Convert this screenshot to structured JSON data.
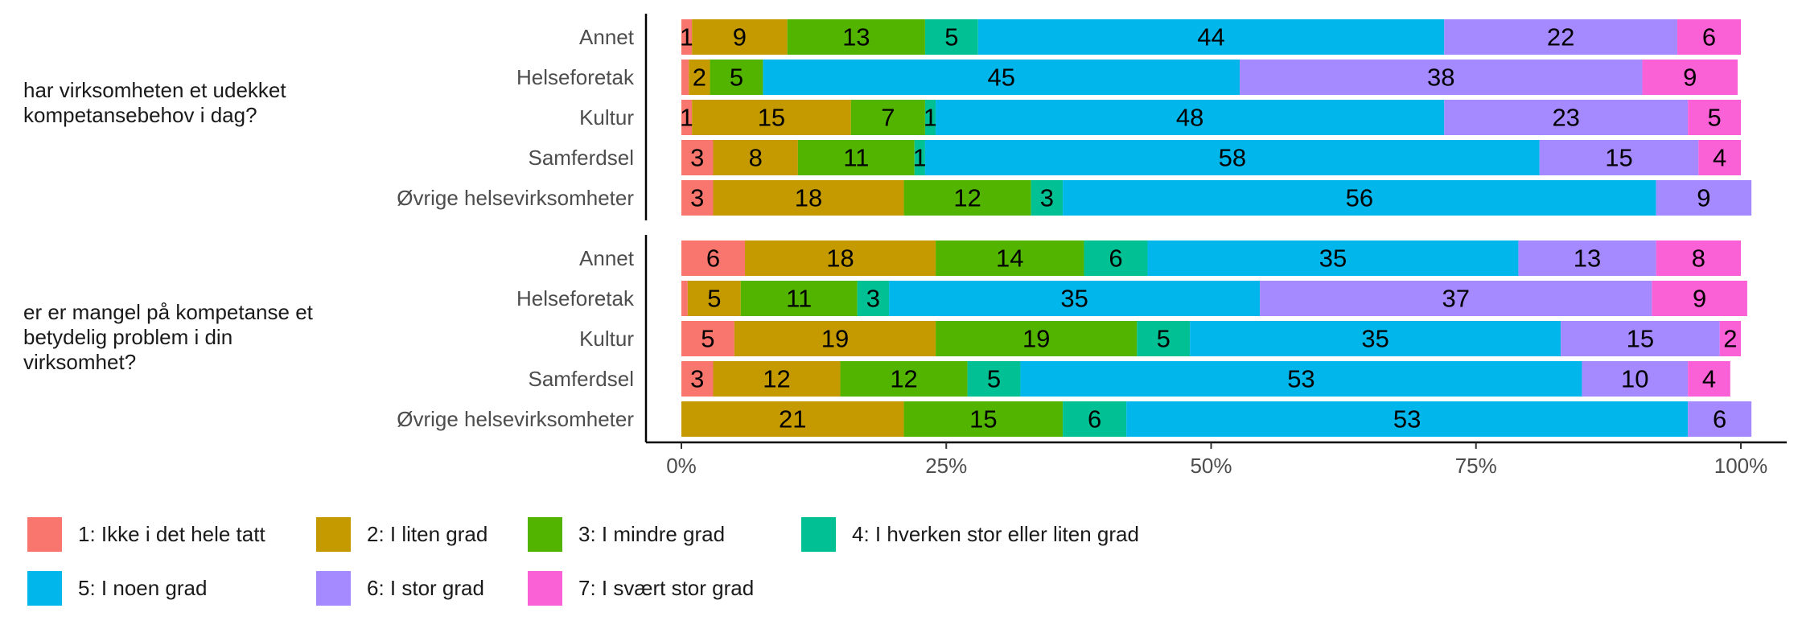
{
  "chart_data": {
    "type": "bar",
    "orientation": "horizontal",
    "stacked": true,
    "xlim": [
      0,
      100
    ],
    "xticks": [
      {
        "value": 0,
        "label": "0%"
      },
      {
        "value": 25,
        "label": "25%"
      },
      {
        "value": 50,
        "label": "50%"
      },
      {
        "value": 75,
        "label": "75%"
      },
      {
        "value": 100,
        "label": "100%"
      }
    ],
    "series": [
      {
        "name": "1: Ikke i det hele tatt",
        "color": "#f8766d"
      },
      {
        "name": "2: I liten grad",
        "color": "#c49a00"
      },
      {
        "name": "3: I mindre grad",
        "color": "#53b400"
      },
      {
        "name": "4: I hverken stor eller liten grad",
        "color": "#00c094"
      },
      {
        "name": "5: I noen grad",
        "color": "#00b6eb"
      },
      {
        "name": "6: I stor grad",
        "color": "#a58aff"
      },
      {
        "name": "7: I svært stor grad",
        "color": "#fb61d7"
      }
    ],
    "facets": [
      {
        "label": "har virksomheten et udekket kompetansebehov i dag?",
        "categories": [
          "Annet",
          "Helseforetak",
          "Kultur",
          "Samferdsel",
          "Øvrige helsevirksomheter"
        ],
        "series": [
          {
            "values": [
              1,
              0.7,
              1,
              3,
              3
            ]
          },
          {
            "values": [
              9,
              2,
              15,
              8,
              18
            ]
          },
          {
            "values": [
              13,
              5,
              7,
              11,
              12
            ]
          },
          {
            "values": [
              5,
              null,
              1,
              1,
              3
            ]
          },
          {
            "values": [
              44,
              45,
              48,
              58,
              56
            ]
          },
          {
            "values": [
              22,
              38,
              23,
              15,
              9
            ]
          },
          {
            "values": [
              6,
              9,
              5,
              4,
              null
            ]
          }
        ]
      },
      {
        "label": "er er mangel på kompetanse et betydelig problem i din virksomhet?",
        "categories": [
          "Annet",
          "Helseforetak",
          "Kultur",
          "Samferdsel",
          "Øvrige helsevirksomheter"
        ],
        "series": [
          {
            "values": [
              6,
              0.6,
              5,
              3,
              null
            ]
          },
          {
            "values": [
              18,
              5,
              19,
              12,
              21
            ]
          },
          {
            "values": [
              14,
              11,
              19,
              12,
              15
            ]
          },
          {
            "values": [
              6,
              3,
              5,
              5,
              6
            ]
          },
          {
            "values": [
              35,
              35,
              35,
              53,
              53
            ]
          },
          {
            "values": [
              13,
              37,
              15,
              10,
              6
            ]
          },
          {
            "values": [
              8,
              9,
              2,
              4,
              null
            ]
          }
        ]
      }
    ]
  }
}
